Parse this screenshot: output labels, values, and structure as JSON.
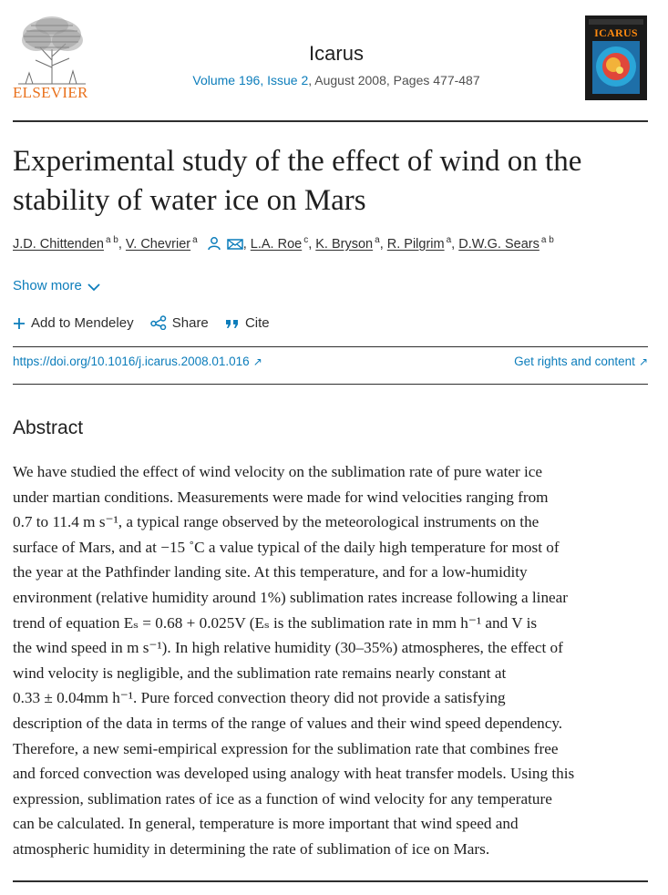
{
  "header": {
    "publisher": "ELSEVIER",
    "journal_title": "Icarus",
    "volume_issue": "Volume 196, Issue 2",
    "date_pages": ", August 2008, Pages 477-487",
    "cover_title": "ICARUS"
  },
  "article": {
    "title_lines": [
      "Experimental study of the effect of wind on the",
      "stability of water ice on Mars"
    ],
    "authors": [
      {
        "name": "J.D. Chittenden",
        "sup": "a b"
      },
      {
        "name": "V. Chevrier",
        "sup": "a"
      },
      {
        "name": "L.A. Roe",
        "sup": "c"
      },
      {
        "name": "K. Bryson",
        "sup": "a"
      },
      {
        "name": "R. Pilgrim",
        "sup": "a"
      },
      {
        "name": "D.W.G. Sears",
        "sup": "a b"
      }
    ],
    "show_more": "Show more",
    "actions": {
      "mendeley": "Add to Mendeley",
      "share": "Share",
      "cite": "Cite"
    },
    "doi": "https://doi.org/10.1016/j.icarus.2008.01.016",
    "rights": "Get rights and content"
  },
  "abstract": {
    "heading": "Abstract",
    "lines": [
      "We have studied the effect of wind velocity on the sublimation rate of pure water ice",
      "under martian conditions. Measurements were made for wind velocities ranging from",
      "0.7 to 11.4 m s⁻¹, a typical range observed by the meteorological instruments on the",
      "surface of Mars, and at −15 ˚C a value typical of the daily high temperature for most of",
      "the year at the Pathfinder landing site. At this temperature, and for a low-humidity",
      "environment (relative humidity around 1%) sublimation rates increase following a linear",
      "trend of equation Eₛ = 0.68 + 0.025V (Eₛ is the sublimation rate in mm h⁻¹ and V is",
      "the wind speed in m s⁻¹). In high relative humidity (30–35%) atmospheres, the effect of",
      "wind velocity is negligible, and the sublimation rate remains nearly constant at",
      "0.33 ± 0.04mm h⁻¹. Pure forced convection theory did not provide a satisfying",
      "description of the data in terms of the range of values and their wind speed dependency.",
      "Therefore, a new semi-empirical expression for the sublimation rate that combines free",
      "and forced convection was developed using analogy with heat transfer models. Using this",
      "expression, sublimation rates of ice as a function of wind velocity for any temperature",
      "can be calculated. In general, temperature is more important that wind speed and",
      "atmospheric humidity in determining the rate of sublimation of ice on Mars."
    ]
  }
}
